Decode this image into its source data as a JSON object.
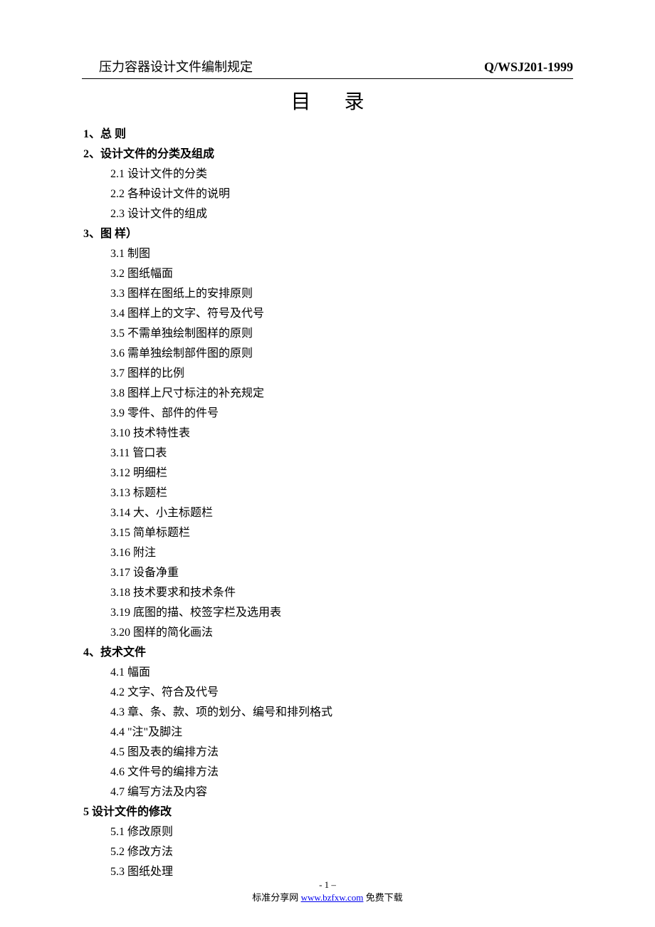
{
  "header": {
    "left": "压力容器设计文件编制规定",
    "right": "Q/WSJ201-1999"
  },
  "title": "目 录",
  "sections": [
    {
      "heading": "1、总  则",
      "items": []
    },
    {
      "heading": "2、设计文件的分类及组成",
      "items": [
        "2.1 设计文件的分类",
        "2.2 各种设计文件的说明",
        "2.3 设计文件的组成"
      ]
    },
    {
      "heading": "3、图  样）",
      "items": [
        "3.1  制图",
        "3.2  图纸幅面",
        "3.3  图样在图纸上的安排原则",
        "3.4  图样上的文字、符号及代号",
        "3.5  不需单独绘制图样的原则",
        "3.6  需单独绘制部件图的原则",
        "3.7  图样的比例",
        "3.8  图样上尺寸标注的补充规定",
        "3.9  零件、部件的件号",
        "3.10  技术特性表",
        "3.11  管口表",
        "3.12  明细栏",
        "3.13  标题栏",
        "3.14  大、小主标题栏",
        "3.15  简单标题栏",
        "3.16  附注",
        "3.17  设备净重",
        "3.18  技术要求和技术条件",
        "3.19 底图的描、校签字栏及选用表",
        "3.20  图样的简化画法"
      ]
    },
    {
      "heading": "4、技术文件",
      "items": [
        "4.1  幅面",
        "4.2  文字、符合及代号",
        "4.3  章、条、款、项的划分、编号和排列格式",
        "4.4  \"注\"及脚注",
        "4.5  图及表的编排方法",
        "4.6  文件号的编排方法",
        "4.7  编写方法及内容"
      ]
    },
    {
      "heading": "5  设计文件的修改",
      "items": [
        "5.1  修改原则",
        "5.2  修改方法",
        "5.3  图纸处理"
      ]
    }
  ],
  "footer": {
    "page_number": "- 1 –",
    "share_prefix": "标准分享网  ",
    "share_link": "www.bzfxw.com",
    "share_suffix": "  免费下载"
  }
}
